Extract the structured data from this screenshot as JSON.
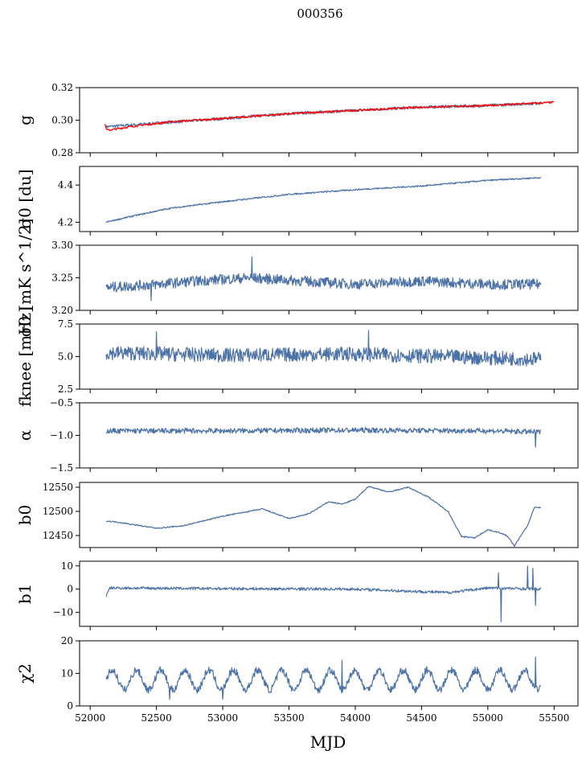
{
  "title": "000356",
  "colors": {
    "series": "#4c72a8",
    "fit": "#ff0000"
  },
  "chart_data": [
    {
      "type": "line",
      "id": "g",
      "ylabel": "g",
      "ylabel_html": "𝑔",
      "ylim": [
        0.28,
        0.32
      ],
      "yticks": [
        0.28,
        0.3,
        0.32
      ],
      "yticklabels": [
        "0.28",
        "0.30",
        "0.32"
      ],
      "series": [
        {
          "name": "g",
          "color_key": "series",
          "x": [
            52120,
            53000,
            53500,
            54000,
            54500,
            55000,
            55400
          ],
          "y": [
            0.296,
            0.301,
            0.304,
            0.306,
            0.308,
            0.309,
            0.3105
          ],
          "noise": 0.0009
        },
        {
          "name": "g fit",
          "color_key": "fit",
          "x": [
            52110,
            52125,
            52150,
            52300,
            52600,
            53000,
            53500,
            54000,
            54500,
            55000,
            55500
          ],
          "y": [
            0.298,
            0.294,
            0.294,
            0.296,
            0.299,
            0.301,
            0.304,
            0.306,
            0.308,
            0.309,
            0.311
          ],
          "noise": 0.0006,
          "width": 2.4
        }
      ]
    },
    {
      "type": "line",
      "id": "sigma0",
      "ylabel": "σ0 [du]",
      "ylim": [
        4.15,
        4.5
      ],
      "yticks": [
        4.2,
        4.4
      ],
      "yticklabels": [
        "4.2",
        "4.4"
      ],
      "series": [
        {
          "name": "sigma0",
          "color_key": "series",
          "x": [
            52120,
            52300,
            52600,
            53000,
            53500,
            54000,
            54500,
            55000,
            55400
          ],
          "y": [
            4.2,
            4.23,
            4.275,
            4.31,
            4.35,
            4.375,
            4.395,
            4.425,
            4.44
          ],
          "noise": 0.004
        }
      ]
    },
    {
      "type": "line",
      "id": "sigma0_mk",
      "ylabel": "σ0 [mK s^1/2]",
      "ylim": [
        3.2,
        3.3
      ],
      "yticks": [
        3.2,
        3.25,
        3.3
      ],
      "yticklabels": [
        "3.20",
        "3.25",
        "3.30"
      ],
      "series": [
        {
          "name": "sigma0 mK",
          "color_key": "series",
          "x": [
            52120,
            52500,
            52800,
            53200,
            53600,
            54000,
            54500,
            55000,
            55400
          ],
          "y": [
            3.235,
            3.24,
            3.245,
            3.25,
            3.245,
            3.24,
            3.245,
            3.24,
            3.24
          ],
          "noise": 0.008,
          "spikes": [
            [
              53220,
              3.282
            ],
            [
              53810,
              3.208
            ],
            [
              52460,
              3.215
            ]
          ]
        }
      ]
    },
    {
      "type": "line",
      "id": "fknee",
      "ylabel": "fknee [mHz]",
      "ylim": [
        2.5,
        7.5
      ],
      "yticks": [
        2.5,
        5.0,
        7.5
      ],
      "yticklabels": [
        "2.5",
        "5.0",
        "7.5"
      ],
      "series": [
        {
          "name": "fknee",
          "color_key": "series",
          "x": [
            52120,
            53000,
            54000,
            55000,
            55400
          ],
          "y": [
            5.3,
            5.1,
            5.2,
            4.9,
            4.8
          ],
          "noise": 0.55,
          "spikes": [
            [
              54100,
              7.0
            ],
            [
              52500,
              6.9
            ]
          ]
        }
      ]
    },
    {
      "type": "line",
      "id": "alpha",
      "ylabel": "α",
      "ylim": [
        -1.5,
        -0.5
      ],
      "yticks": [
        -1.5,
        -1.0,
        -0.5
      ],
      "yticklabels": [
        "−1.5",
        "−1.0",
        "−0.5"
      ],
      "series": [
        {
          "name": "alpha",
          "color_key": "series",
          "x": [
            52120,
            53000,
            54000,
            55000,
            55400
          ],
          "y": [
            -0.93,
            -0.93,
            -0.92,
            -0.93,
            -0.95
          ],
          "noise": 0.04,
          "spikes": [
            [
              55360,
              -1.18
            ]
          ]
        }
      ]
    },
    {
      "type": "line",
      "id": "b0",
      "ylabel": "b0",
      "ylim": [
        12425,
        12560
      ],
      "yticks": [
        12450,
        12500,
        12550
      ],
      "yticklabels": [
        "12450",
        "12500",
        "12550"
      ],
      "series": [
        {
          "name": "b0",
          "color_key": "series",
          "x": [
            52120,
            52200,
            52500,
            52700,
            53000,
            53300,
            53500,
            53650,
            53800,
            53900,
            54000,
            54100,
            54250,
            54400,
            54550,
            54700,
            54800,
            54900,
            55000,
            55100,
            55150,
            55200,
            55250,
            55300,
            55350,
            55400
          ],
          "y": [
            12480,
            12478,
            12465,
            12470,
            12490,
            12505,
            12485,
            12495,
            12520,
            12515,
            12525,
            12552,
            12540,
            12550,
            12530,
            12500,
            12448,
            12445,
            12462,
            12455,
            12448,
            12428,
            12450,
            12470,
            12508,
            12508
          ],
          "noise": 1.2
        }
      ]
    },
    {
      "type": "line",
      "id": "b1",
      "ylabel": "b1",
      "ylim": [
        -16,
        12
      ],
      "yticks": [
        -10,
        0,
        10
      ],
      "yticklabels": [
        "−10",
        "0",
        "10"
      ],
      "series": [
        {
          "name": "b1",
          "color_key": "series",
          "x": [
            52120,
            52150,
            53000,
            54000,
            54700,
            55000,
            55400
          ],
          "y": [
            -3,
            0.5,
            0.2,
            0.0,
            -1.5,
            0.5,
            0.0
          ],
          "noise": 0.6,
          "spikes": [
            [
              55100,
              -14
            ],
            [
              55080,
              7
            ],
            [
              55300,
              10
            ],
            [
              55340,
              9
            ],
            [
              55360,
              -7
            ]
          ]
        }
      ]
    },
    {
      "type": "line",
      "id": "chi2",
      "ylabel": "χ2",
      "ylim": [
        0,
        20
      ],
      "yticks": [
        0,
        10,
        20
      ],
      "yticklabels": [
        "0",
        "10",
        "20"
      ],
      "xlabel": "MJD",
      "xticks": [
        52000,
        52500,
        53000,
        53500,
        54000,
        54500,
        55000,
        55500
      ],
      "xticklabels": [
        "52000",
        "52500",
        "53000",
        "53500",
        "54000",
        "54500",
        "55000",
        "55500"
      ],
      "series": [
        {
          "name": "chi2",
          "color_key": "series",
          "x": [
            52120,
            55400
          ],
          "y": [
            8,
            8
          ],
          "periodic": {
            "period": 183,
            "amplitude": 3.0,
            "mean": 8.0
          },
          "noise": 1.1,
          "spikes": [
            [
              55360,
              15
            ],
            [
              53900,
              14
            ],
            [
              52600,
              2
            ],
            [
              53000,
              2
            ]
          ]
        }
      ]
    }
  ],
  "shared_x": {
    "xlim": [
      51920,
      55680
    ]
  }
}
